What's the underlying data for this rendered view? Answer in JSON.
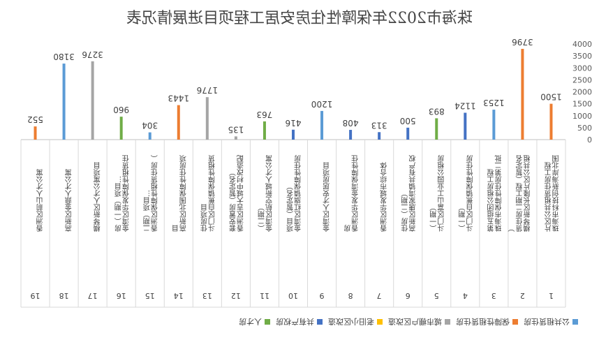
{
  "chart_data": {
    "type": "bar",
    "title": "珠海市2022年保障性住房安居工程项目进展情况表",
    "ylim": [
      0,
      4000
    ],
    "y_ticks": [
      "0",
      "500",
      "1000",
      "1500",
      "2000",
      "2500",
      "3000",
      "3500",
      "4000"
    ],
    "grid": false,
    "legend_position": "bottom",
    "mirrored": true,
    "categories": [
      {
        "index": "1",
        "name": "珠海市科技创新海岸北围片区公共租赁住房工程"
      },
      {
        "index": "2",
        "name": "横琴新区长隆片区公共租赁住房二期工程（暂定名）"
      },
      {
        "index": "3",
        "name": "珠海市保障性住房第二批第五组团公租房工程"
      },
      {
        "index": "4",
        "name": "斗门区白蕉镇保障性住房（一期）"
      },
      {
        "index": "5",
        "name": "斗门区富山工业园公租房（一期）"
      },
      {
        "index": "6",
        "name": "高新区唐家湾镇共有产权住房（二期）"
      },
      {
        "index": "7",
        "name": "香洲区华发城市综合体"
      },
      {
        "index": "8",
        "name": "香洲区华发金湾保障性住房"
      },
      {
        "index": "9",
        "name": "金湾区人才安居房项目"
      },
      {
        "index": "10",
        "name": "金湾区红旗镇保障性住房项目（暂定名）"
      },
      {
        "index": "11",
        "name": "金湾区航空新城人才公寓（二期）"
      },
      {
        "index": "12",
        "name": "香洲区吉大城中村改造配套安置房（暂定名）"
      },
      {
        "index": "13",
        "name": "斗门区白蕉镇保障性租赁住房项目"
      },
      {
        "index": "14",
        "name": "高新区北围保障性住房项目"
      },
      {
        "index": "15",
        "name": "香洲区保障性租赁住房（二期）项目…"
      },
      {
        "index": "16",
        "name": "金湾区华发保障性租赁住房（一期）项目…"
      },
      {
        "index": "17",
        "name": "横琴新区人才公寓项目"
      },
      {
        "index": "18",
        "name": "高新区金鼎人才公寓"
      },
      {
        "index": "19",
        "name": "香洲区前山人才公寓"
      }
    ],
    "series": [
      {
        "name": "公共租赁住房",
        "color": "#5b9bd5"
      },
      {
        "name": "保障性租赁住房",
        "color": "#ed7d31"
      },
      {
        "name": "城市棚户区改造",
        "color": "#a5a5a5"
      },
      {
        "name": "老旧小区改造",
        "color": "#ffc000"
      },
      {
        "name": "共有产权房",
        "color": "#4472c4"
      },
      {
        "name": "人才房",
        "color": "#70ad47"
      }
    ],
    "bars": [
      {
        "cat": 0,
        "series": 1,
        "value": 1500
      },
      {
        "cat": 1,
        "series": 1,
        "value": 3796
      },
      {
        "cat": 2,
        "series": 0,
        "value": 1253
      },
      {
        "cat": 3,
        "series": 4,
        "value": 1124
      },
      {
        "cat": 4,
        "series": 5,
        "value": 893
      },
      {
        "cat": 5,
        "series": 4,
        "value": 500
      },
      {
        "cat": 6,
        "series": 4,
        "value": 313
      },
      {
        "cat": 7,
        "series": 4,
        "value": 408
      },
      {
        "cat": 8,
        "series": 0,
        "value": 1200
      },
      {
        "cat": 9,
        "series": 4,
        "value": 416
      },
      {
        "cat": 10,
        "series": 5,
        "value": 763
      },
      {
        "cat": 11,
        "series": 2,
        "value": 135
      },
      {
        "cat": 12,
        "series": 2,
        "value": 1776
      },
      {
        "cat": 13,
        "series": 1,
        "value": 1443
      },
      {
        "cat": 14,
        "series": 0,
        "value": 304
      },
      {
        "cat": 15,
        "series": 5,
        "value": 960
      },
      {
        "cat": 16,
        "series": 2,
        "value": 3276
      },
      {
        "cat": 17,
        "series": 0,
        "value": 3180
      },
      {
        "cat": 18,
        "series": 1,
        "value": 552
      }
    ]
  }
}
